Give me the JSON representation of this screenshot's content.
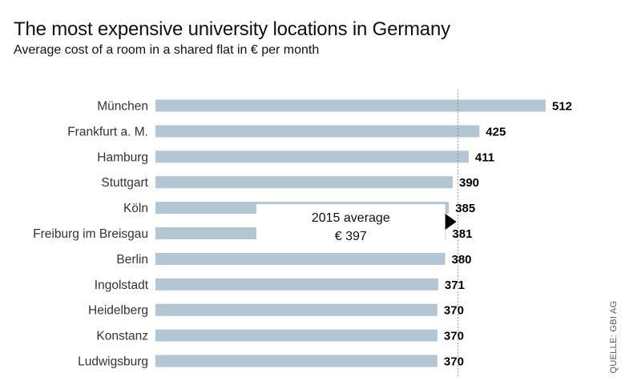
{
  "title": "The most expensive university locations in Germany",
  "subtitle": "Average cost of a room in a shared flat in € per month",
  "source": "QUELLE: GBI AG",
  "colors": {
    "bar": "#b3c6d3",
    "reference_line": "#777777",
    "label": "#333333",
    "value": "#000000"
  },
  "chart_data": {
    "type": "bar",
    "orientation": "horizontal",
    "categories": [
      "München",
      "Frankfurt a. M.",
      "Hamburg",
      "Stuttgart",
      "Köln",
      "Freiburg im Breisgau",
      "Berlin",
      "Ingolstadt",
      "Heidelberg",
      "Konstanz",
      "Ludwigsburg"
    ],
    "values": [
      512,
      425,
      411,
      390,
      385,
      381,
      380,
      371,
      370,
      370,
      370
    ],
    "reference": {
      "label_line1": "2015 average",
      "label_line2": "€ 397",
      "value": 397
    },
    "grid": false
  }
}
